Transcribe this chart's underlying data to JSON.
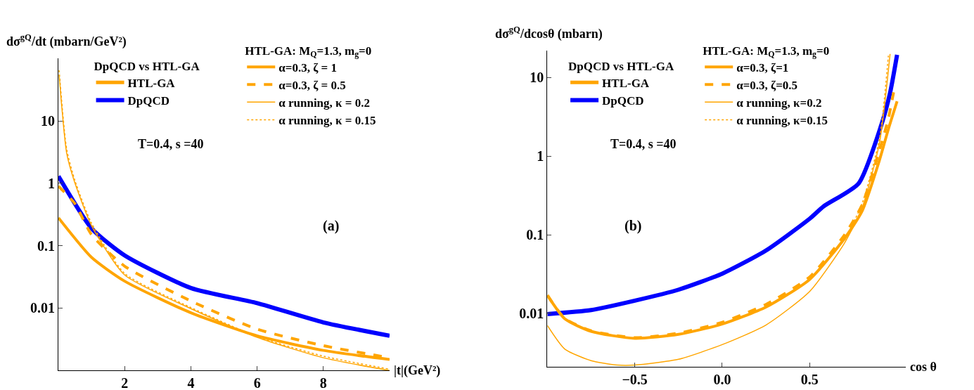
{
  "chart_data": [
    {
      "type": "line",
      "xlabel": "|t|(GeV²)",
      "ylabel": "dσ$^{gQ}$/dt (mbarn/GeV²)",
      "log": "y",
      "grid": false,
      "legend": "top right",
      "legend_title": [
        "DpQCD vs HTL-GA",
        "HTL-GA: M$_{Q}$=1.3, m$_{g}$=0"
      ],
      "xlim": [
        0,
        10
      ],
      "xticks": [
        2,
        4,
        6,
        8
      ],
      "ylim": [
        0.001,
        100
      ],
      "yticks": [
        0.01,
        0.1,
        1,
        10
      ],
      "annotations": [
        "T=0.4, s =40",
        "(a)"
      ],
      "series": [
        {
          "name": "HTL-GA",
          "color": "#ffa500",
          "line_style": "solid"
        },
        {
          "name": "DpQCD",
          "color": "#0000ff",
          "line_style": "solid",
          "x": [
            0,
            1,
            2,
            4,
            6,
            8,
            10
          ],
          "values": [
            1.3,
            0.19,
            0.07,
            0.021,
            0.012,
            0.0059,
            0.0036
          ]
        },
        {
          "name": "α=0.3, ζ = 1",
          "color": "#ffa500",
          "line_style": "solid",
          "x": [
            0,
            1,
            2,
            4,
            6,
            8,
            10
          ],
          "values": [
            0.28,
            0.065,
            0.027,
            0.0084,
            0.0036,
            0.0021,
            0.0015
          ]
        },
        {
          "name": "α=0.3, ζ = 0.5",
          "color": "#ffa500",
          "line_style": "dashed",
          "x": [
            0,
            0.5,
            1,
            2,
            4,
            6,
            8,
            10
          ],
          "values": [
            0.9,
            0.47,
            0.15,
            0.047,
            0.013,
            0.0046,
            0.0025,
            0.0016
          ]
        },
        {
          "name": "α running, κ = 0.2",
          "color": "#ffa500",
          "line_style": "solid",
          "x": [
            0.02,
            0.25,
            0.5,
            1,
            2,
            4,
            6,
            8,
            10
          ],
          "values": [
            55,
            3,
            1.0,
            0.21,
            0.034,
            0.0098,
            0.0034,
            0.0016,
            0.001
          ]
        },
        {
          "name": "α running, κ = 0.15",
          "color": "#ffa500",
          "line_style": "dotted",
          "x": [
            0.02,
            0.25,
            0.5,
            1,
            2,
            4,
            6,
            8,
            10
          ],
          "values": [
            65,
            3.5,
            1.1,
            0.23,
            0.036,
            0.0102,
            0.0035,
            0.0017,
            0.00105
          ]
        }
      ]
    },
    {
      "type": "line",
      "xlabel": "cos θ",
      "ylabel": "dσ$^{gQ}$/dcosθ (mbarn)",
      "log": "y",
      "grid": false,
      "legend": "top left",
      "legend_title": [
        "DpQCD vs HTL-GA",
        "HTL-GA: M$_{Q}$=1.3, m$_{g}$=0"
      ],
      "xlim": [
        -1,
        1.05
      ],
      "xticks": [
        {
          "value": -0.5,
          "label": "−0.5"
        },
        {
          "value": 0,
          "label": "0.0"
        },
        0.5
      ],
      "ylim": [
        0.0021,
        22
      ],
      "yticks": [
        0.01,
        0.1,
        1,
        10
      ],
      "annotations": [
        "T=0.4, s =40",
        "(b)"
      ],
      "series": [
        {
          "name": "HTL-GA",
          "color": "#ffa500",
          "line_style": "solid"
        },
        {
          "name": "DpQCD",
          "color": "#0000ff",
          "line_style": "solid",
          "x": [
            -1,
            -0.75,
            -0.5,
            -0.25,
            0,
            0.25,
            0.5,
            0.58,
            0.78,
            0.91,
            0.96,
            1.0
          ],
          "values": [
            0.0098,
            0.011,
            0.0145,
            0.02,
            0.032,
            0.063,
            0.16,
            0.23,
            0.45,
            2.5,
            6.4,
            19.5
          ]
        },
        {
          "name": "α=0.3, ζ=1",
          "color": "#ffa500",
          "line_style": "solid",
          "x": [
            -1,
            -0.9,
            -0.75,
            -0.5,
            -0.25,
            0,
            0.25,
            0.5,
            0.7,
            0.8,
            0.9,
            0.95,
            1.0
          ],
          "values": [
            0.017,
            0.0085,
            0.0059,
            0.0048,
            0.0054,
            0.0073,
            0.012,
            0.027,
            0.09,
            0.2,
            0.9,
            2.2,
            5
          ]
        },
        {
          "name": "α=0.3, ζ=0.5",
          "color": "#ffa500",
          "line_style": "dashed",
          "x": [
            -1,
            -0.9,
            -0.75,
            -0.5,
            -0.25,
            0,
            0.25,
            0.5,
            0.7,
            0.8,
            0.9,
            0.95,
            0.98
          ],
          "values": [
            0.017,
            0.0086,
            0.006,
            0.0049,
            0.0056,
            0.0077,
            0.013,
            0.029,
            0.1,
            0.24,
            1.2,
            3,
            6.5
          ]
        },
        {
          "name": "α running, κ=0.2",
          "color": "#ffa500",
          "line_style": "solid",
          "x": [
            -1,
            -0.9,
            -0.75,
            -0.6,
            -0.5,
            -0.25,
            0,
            0.25,
            0.5,
            0.7,
            0.8,
            0.9,
            0.96
          ],
          "values": [
            0.007,
            0.0035,
            0.0025,
            0.0022,
            0.0022,
            0.0026,
            0.004,
            0.0071,
            0.019,
            0.079,
            0.22,
            1.5,
            20
          ]
        },
        {
          "name": "α running, κ=0.15",
          "color": "#ffa500",
          "line_style": "dotted",
          "x": [
            0.7,
            0.8,
            0.9,
            0.95
          ],
          "values": [
            0.085,
            0.25,
            1.7,
            19
          ]
        }
      ]
    }
  ]
}
